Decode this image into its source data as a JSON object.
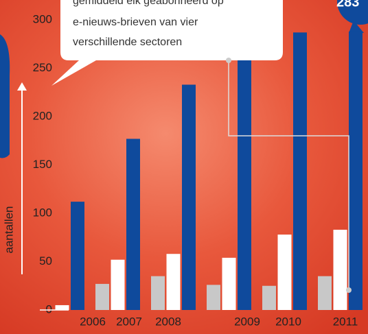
{
  "chart_data": {
    "type": "bar",
    "annotation": "gemiddeld elk geabonneerd op e-nieuws-brieven van vier verschillende sectoren",
    "annotation_lines": [
      "gemiddeld elk geabonneerd op",
      "e-nieuws-brieven van vier",
      "verschillende sectoren"
    ],
    "corner_label": "283",
    "ylabel": "aantallen",
    "categories": [
      "2006",
      "2007",
      "2008",
      "2009",
      "2010",
      "2011"
    ],
    "series": [
      {
        "color": "#c8c8c8",
        "values": [
          null,
          27,
          35,
          26,
          25,
          35
        ]
      },
      {
        "color": "#ffffff",
        "values": [
          5,
          52,
          58,
          54,
          78,
          83
        ]
      },
      {
        "color": "#0f4a9c",
        "values": [
          112,
          177,
          233,
          262,
          287,
          288
        ]
      }
    ],
    "ylim": [
      0,
      300
    ],
    "yticks": [
      0,
      50,
      100,
      150,
      200,
      250,
      300
    ]
  }
}
